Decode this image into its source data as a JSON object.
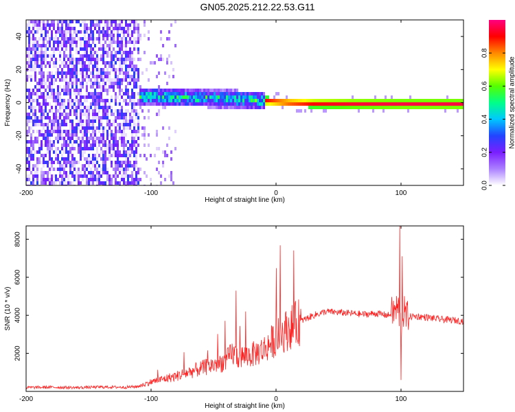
{
  "title": "GN05.2025.212.22.53.G11",
  "chart_data": [
    {
      "type": "heatmap",
      "xlabel": "Height of straight line (km)",
      "ylabel": "Frequency (Hz)",
      "xlim": [
        -200,
        150
      ],
      "ylim": [
        -50,
        50
      ],
      "xticks": [
        -200,
        -100,
        0,
        100
      ],
      "yticks": [
        -40,
        -20,
        0,
        20,
        40
      ],
      "colorbar": {
        "label": "Normalized spectral amplitude",
        "range": [
          0,
          1
        ],
        "ticks": [
          "0.0",
          "0.2",
          "0.4",
          "0.6",
          "0.8"
        ],
        "colormap": [
          "#ffffff",
          "#ab80ff",
          "#7a1fff",
          "#2244ff",
          "#00c8ff",
          "#00ff88",
          "#55ff00",
          "#ffff00",
          "#ff8800",
          "#ff0000",
          "#ff0080"
        ]
      },
      "regions": [
        {
          "x_range": [
            -200,
            -110
          ],
          "freq_range": [
            -50,
            50
          ],
          "amplitude": 0.15,
          "description_level": "noise"
        },
        {
          "x_range": [
            -110,
            -80
          ],
          "freq_range": [
            -50,
            50
          ],
          "amplitude": 0.05,
          "description_level": "sparse"
        },
        {
          "x_range": [
            -110,
            -10
          ],
          "freq_range": [
            -3,
            8
          ],
          "amplitude": 0.45,
          "description_level": "signal-band"
        },
        {
          "x_range": [
            -10,
            150
          ],
          "freq_range": [
            -1,
            2
          ],
          "amplitude": 0.95,
          "description_level": "carrier-line"
        }
      ],
      "ridge": {
        "x": [
          -110,
          -90,
          -70,
          -50,
          -30,
          -10,
          10,
          30,
          60,
          100,
          150
        ],
        "freq": [
          5,
          4.5,
          4,
          3.5,
          3,
          2,
          1,
          0.5,
          0.3,
          0.2,
          0.2
        ]
      },
      "grid": false
    },
    {
      "type": "line",
      "xlabel": "Height of straight line (km)",
      "ylabel": "SNR (10 * v/v)",
      "xlim": [
        -200,
        150
      ],
      "ylim": [
        0,
        8700
      ],
      "xticks": [
        -200,
        -100,
        0,
        100
      ],
      "yticks": [
        2000,
        4000,
        6000,
        8000
      ],
      "color": "#ff2020",
      "x": [
        -200,
        -180,
        -160,
        -140,
        -120,
        -110,
        -100,
        -90,
        -80,
        -70,
        -60,
        -50,
        -40,
        -35,
        -30,
        -20,
        -10,
        0,
        10,
        20,
        30,
        40,
        50,
        60,
        70,
        80,
        90,
        95,
        98,
        100,
        102,
        105,
        110,
        120,
        130,
        140,
        150
      ],
      "y": [
        200,
        220,
        200,
        230,
        220,
        260,
        500,
        650,
        800,
        1000,
        1200,
        1400,
        1600,
        2000,
        1800,
        1900,
        2200,
        2800,
        3300,
        3700,
        4000,
        4200,
        4150,
        4100,
        4050,
        4100,
        4000,
        4200,
        4400,
        3300,
        4200,
        3900,
        3950,
        3900,
        3800,
        3750,
        3700
      ],
      "spikes": [
        {
          "x": -32,
          "y": 5300
        },
        {
          "x": 99,
          "y": 8700
        },
        {
          "x": 100,
          "y": 600
        },
        {
          "x": 101,
          "y": 7100
        }
      ],
      "grid": false
    }
  ]
}
